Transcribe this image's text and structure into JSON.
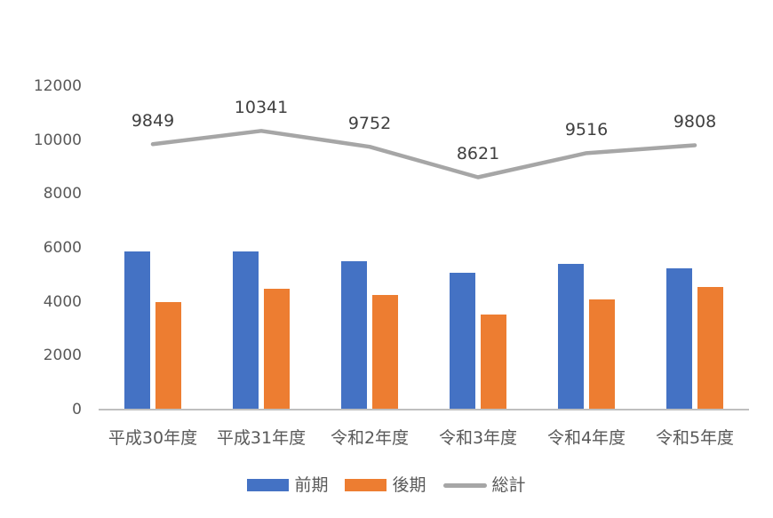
{
  "chart_data": {
    "type": "bar+line combo",
    "categories": [
      "平成30年度",
      "平成31年度",
      "令和2年度",
      "令和3年度",
      "令和4年度",
      "令和5年度"
    ],
    "series": [
      {
        "name": "前期",
        "type": "bar",
        "color": "#4472C4",
        "values": [
          5860,
          5860,
          5490,
          5090,
          5420,
          5250
        ]
      },
      {
        "name": "後期",
        "type": "bar",
        "color": "#ED7D31",
        "values": [
          3989,
          4481,
          4262,
          3531,
          4096,
          4558
        ]
      },
      {
        "name": "総計",
        "type": "line",
        "color": "#A6A6A6",
        "values": [
          9849,
          10341,
          9752,
          8621,
          9516,
          9808
        ],
        "data_labels": [
          "9849",
          "10341",
          "9752",
          "8621",
          "9516",
          "9808"
        ]
      }
    ],
    "title": "",
    "xlabel": "",
    "ylabel": "",
    "ylim": [
      0,
      12000
    ],
    "y_ticks": [
      0,
      2000,
      4000,
      6000,
      8000,
      10000,
      12000
    ],
    "grid": false,
    "legend_position": "bottom"
  },
  "legend": {
    "items": [
      {
        "label": "前期",
        "color": "#4472C4",
        "shape": "rect"
      },
      {
        "label": "後期",
        "color": "#ED7D31",
        "shape": "rect"
      },
      {
        "label": "総計",
        "color": "#A6A6A6",
        "shape": "line"
      }
    ]
  },
  "colors": {
    "background": "#FFFFFF",
    "axis_line": "#BFBFBF",
    "axis_text": "#595959",
    "data_label_text": "#404040"
  }
}
